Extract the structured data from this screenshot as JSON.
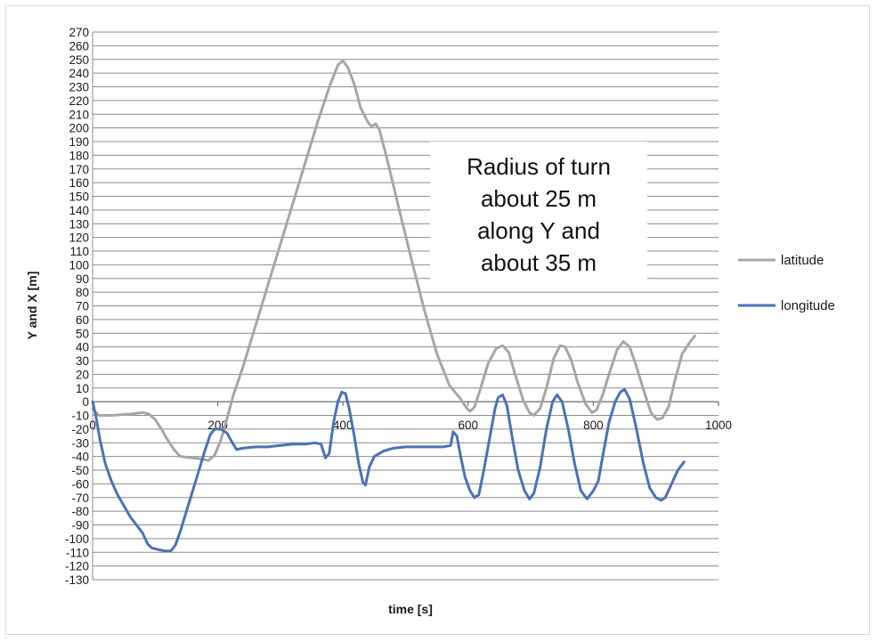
{
  "chart_data": {
    "type": "line",
    "xlabel": "time [s]",
    "ylabel": "Y and X [m]",
    "xlim": [
      0,
      1000
    ],
    "ylim": [
      -130,
      270
    ],
    "xticks": [
      0,
      200,
      400,
      600,
      800,
      1000
    ],
    "yticks": [
      270,
      260,
      250,
      240,
      230,
      220,
      210,
      200,
      190,
      180,
      170,
      160,
      150,
      140,
      130,
      120,
      110,
      100,
      90,
      80,
      70,
      60,
      50,
      40,
      30,
      20,
      10,
      0,
      -10,
      -20,
      -30,
      -40,
      -50,
      -60,
      -70,
      -80,
      -90,
      -100,
      -110,
      -120,
      -130
    ],
    "grid": true,
    "legend_position": "right",
    "annotation": [
      "Radius of turn",
      "about 25 m",
      "along Y and",
      "about 35 m"
    ],
    "series": [
      {
        "name": "latitude",
        "color": "#a6a6a6",
        "points": [
          [
            0,
            -5
          ],
          [
            10,
            -10
          ],
          [
            30,
            -10
          ],
          [
            60,
            -9
          ],
          [
            80,
            -8
          ],
          [
            90,
            -9
          ],
          [
            100,
            -13
          ],
          [
            110,
            -20
          ],
          [
            120,
            -28
          ],
          [
            130,
            -35
          ],
          [
            140,
            -40
          ],
          [
            160,
            -41
          ],
          [
            175,
            -42
          ],
          [
            185,
            -43
          ],
          [
            195,
            -39
          ],
          [
            205,
            -28
          ],
          [
            215,
            -12
          ],
          [
            225,
            5
          ],
          [
            240,
            25
          ],
          [
            260,
            55
          ],
          [
            280,
            85
          ],
          [
            300,
            115
          ],
          [
            320,
            145
          ],
          [
            340,
            175
          ],
          [
            360,
            205
          ],
          [
            380,
            232
          ],
          [
            392,
            246
          ],
          [
            400,
            249
          ],
          [
            408,
            244
          ],
          [
            418,
            232
          ],
          [
            428,
            215
          ],
          [
            440,
            204
          ],
          [
            446,
            201
          ],
          [
            452,
            203
          ],
          [
            458,
            199
          ],
          [
            470,
            178
          ],
          [
            490,
            140
          ],
          [
            510,
            103
          ],
          [
            530,
            67
          ],
          [
            550,
            35
          ],
          [
            570,
            12
          ],
          [
            588,
            2
          ],
          [
            598,
            -5
          ],
          [
            603,
            -7
          ],
          [
            610,
            -4
          ],
          [
            620,
            10
          ],
          [
            632,
            28
          ],
          [
            645,
            39
          ],
          [
            655,
            41
          ],
          [
            665,
            36
          ],
          [
            675,
            20
          ],
          [
            688,
            1
          ],
          [
            698,
            -8
          ],
          [
            705,
            -10
          ],
          [
            715,
            -5
          ],
          [
            725,
            10
          ],
          [
            737,
            32
          ],
          [
            747,
            41
          ],
          [
            755,
            40
          ],
          [
            765,
            30
          ],
          [
            775,
            14
          ],
          [
            788,
            -2
          ],
          [
            798,
            -8
          ],
          [
            805,
            -6
          ],
          [
            815,
            5
          ],
          [
            825,
            20
          ],
          [
            838,
            38
          ],
          [
            848,
            44
          ],
          [
            858,
            40
          ],
          [
            868,
            27
          ],
          [
            880,
            9
          ],
          [
            892,
            -8
          ],
          [
            902,
            -13
          ],
          [
            910,
            -12
          ],
          [
            920,
            -4
          ],
          [
            930,
            15
          ],
          [
            942,
            35
          ],
          [
            955,
            44
          ],
          [
            962,
            48
          ]
        ]
      },
      {
        "name": "longitude",
        "color": "#4a72b5",
        "points": [
          [
            0,
            0
          ],
          [
            5,
            -10
          ],
          [
            12,
            -28
          ],
          [
            20,
            -45
          ],
          [
            30,
            -58
          ],
          [
            40,
            -68
          ],
          [
            50,
            -76
          ],
          [
            60,
            -84
          ],
          [
            70,
            -90
          ],
          [
            80,
            -96
          ],
          [
            88,
            -104
          ],
          [
            95,
            -107
          ],
          [
            105,
            -108
          ],
          [
            115,
            -109
          ],
          [
            125,
            -109
          ],
          [
            132,
            -105
          ],
          [
            140,
            -95
          ],
          [
            150,
            -80
          ],
          [
            160,
            -65
          ],
          [
            170,
            -50
          ],
          [
            180,
            -35
          ],
          [
            188,
            -24
          ],
          [
            195,
            -20
          ],
          [
            205,
            -20
          ],
          [
            215,
            -23
          ],
          [
            222,
            -29
          ],
          [
            230,
            -35
          ],
          [
            240,
            -34
          ],
          [
            260,
            -33
          ],
          [
            280,
            -33
          ],
          [
            300,
            -32
          ],
          [
            320,
            -31
          ],
          [
            340,
            -31
          ],
          [
            355,
            -30
          ],
          [
            365,
            -31
          ],
          [
            372,
            -41
          ],
          [
            378,
            -38
          ],
          [
            385,
            -15
          ],
          [
            392,
            0
          ],
          [
            398,
            7
          ],
          [
            404,
            6
          ],
          [
            410,
            -5
          ],
          [
            418,
            -25
          ],
          [
            425,
            -45
          ],
          [
            432,
            -59
          ],
          [
            436,
            -61
          ],
          [
            442,
            -48
          ],
          [
            450,
            -40
          ],
          [
            465,
            -36
          ],
          [
            480,
            -34
          ],
          [
            500,
            -33
          ],
          [
            520,
            -33
          ],
          [
            540,
            -33
          ],
          [
            560,
            -33
          ],
          [
            572,
            -32
          ],
          [
            576,
            -22
          ],
          [
            582,
            -25
          ],
          [
            588,
            -40
          ],
          [
            595,
            -55
          ],
          [
            603,
            -65
          ],
          [
            610,
            -70
          ],
          [
            617,
            -68
          ],
          [
            625,
            -50
          ],
          [
            635,
            -25
          ],
          [
            643,
            -5
          ],
          [
            648,
            3
          ],
          [
            655,
            5
          ],
          [
            662,
            -3
          ],
          [
            670,
            -25
          ],
          [
            680,
            -50
          ],
          [
            690,
            -65
          ],
          [
            698,
            -71
          ],
          [
            705,
            -67
          ],
          [
            715,
            -48
          ],
          [
            725,
            -20
          ],
          [
            735,
            0
          ],
          [
            742,
            5
          ],
          [
            750,
            0
          ],
          [
            760,
            -20
          ],
          [
            770,
            -45
          ],
          [
            780,
            -65
          ],
          [
            790,
            -71
          ],
          [
            800,
            -65
          ],
          [
            808,
            -58
          ],
          [
            815,
            -40
          ],
          [
            825,
            -15
          ],
          [
            835,
            0
          ],
          [
            843,
            7
          ],
          [
            850,
            9
          ],
          [
            858,
            2
          ],
          [
            868,
            -18
          ],
          [
            880,
            -45
          ],
          [
            890,
            -63
          ],
          [
            900,
            -70
          ],
          [
            908,
            -72
          ],
          [
            915,
            -70
          ],
          [
            925,
            -60
          ],
          [
            935,
            -50
          ],
          [
            945,
            -44
          ]
        ]
      }
    ]
  }
}
